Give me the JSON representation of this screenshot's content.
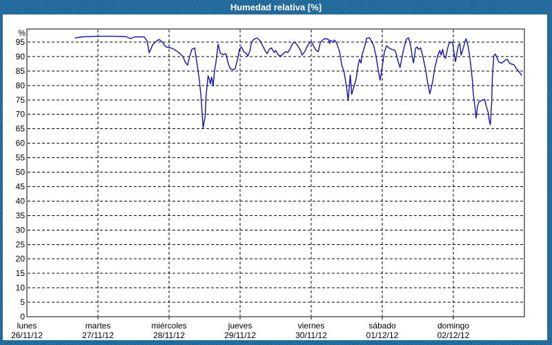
{
  "window": {
    "title": "Humedad relativa [%]"
  },
  "colors": {
    "frame": "#1e699c",
    "title_text": "#ffffff",
    "plot_background": "#ffffff",
    "grid": "#000000",
    "line": "#0e0ecc"
  },
  "chart_data": {
    "type": "line",
    "title": "Humedad relativa [%]",
    "ylabel": "%",
    "xlabel": "",
    "ylim": [
      0,
      99.5
    ],
    "y_ticks": [
      0,
      5,
      10,
      15,
      20,
      25,
      30,
      35,
      40,
      45,
      50,
      55,
      60,
      65,
      70,
      75,
      80,
      85,
      90,
      95
    ],
    "unit_label": "%",
    "grid": "dashed horizontal and vertical",
    "legend_position": "none",
    "x_range_days": 7,
    "x_days": [
      {
        "name": "lunes",
        "date": "26/11/12"
      },
      {
        "name": "martes",
        "date": "27/11/12"
      },
      {
        "name": "miércoles",
        "date": "28/11/12"
      },
      {
        "name": "jueves",
        "date": "29/11/12"
      },
      {
        "name": "viernes",
        "date": "30/11/12"
      },
      {
        "name": "sábado",
        "date": "01/12/12"
      },
      {
        "name": "domingo",
        "date": "02/12/12"
      }
    ],
    "series": [
      {
        "name": "Humedad relativa",
        "unit": "%",
        "color": "#0e0ecc",
        "points": [
          [
            0.68,
            96.4
          ],
          [
            0.77,
            96.8
          ],
          [
            0.98,
            97.0
          ],
          [
            1.22,
            97.0
          ],
          [
            1.39,
            96.9
          ],
          [
            1.46,
            96.2
          ],
          [
            1.52,
            96.8
          ],
          [
            1.65,
            96.8
          ],
          [
            1.69,
            95.5
          ],
          [
            1.72,
            91.3
          ],
          [
            1.77,
            94.1
          ],
          [
            1.82,
            95.3
          ],
          [
            1.86,
            95.9
          ],
          [
            1.91,
            94.9
          ],
          [
            1.95,
            93.4
          ],
          [
            2.05,
            92.8
          ],
          [
            2.13,
            91.5
          ],
          [
            2.19,
            90.2
          ],
          [
            2.23,
            88.0
          ],
          [
            2.26,
            87.0
          ],
          [
            2.29,
            90.0
          ],
          [
            2.32,
            92.5
          ],
          [
            2.36,
            93.0
          ],
          [
            2.39,
            88.1
          ],
          [
            2.41,
            84.9
          ],
          [
            2.43,
            81.0
          ],
          [
            2.45,
            76.0
          ],
          [
            2.48,
            65.3
          ],
          [
            2.51,
            69.8
          ],
          [
            2.52,
            76.2
          ],
          [
            2.54,
            81.0
          ],
          [
            2.55,
            83.3
          ],
          [
            2.57,
            82.0
          ],
          [
            2.58,
            80.5
          ],
          [
            2.6,
            82.9
          ],
          [
            2.62,
            79.8
          ],
          [
            2.64,
            85.0
          ],
          [
            2.66,
            88.1
          ],
          [
            2.69,
            94.3
          ],
          [
            2.72,
            91.2
          ],
          [
            2.76,
            90.6
          ],
          [
            2.8,
            91.0
          ],
          [
            2.83,
            87.8
          ],
          [
            2.86,
            85.8
          ],
          [
            2.9,
            85.4
          ],
          [
            2.93,
            85.8
          ],
          [
            2.96,
            88.6
          ],
          [
            2.99,
            92.5
          ],
          [
            3.02,
            93.3
          ],
          [
            3.05,
            91.7
          ],
          [
            3.09,
            91.0
          ],
          [
            3.11,
            90.2
          ],
          [
            3.14,
            92.1
          ],
          [
            3.16,
            95.0
          ],
          [
            3.2,
            96.1
          ],
          [
            3.24,
            96.4
          ],
          [
            3.28,
            95.5
          ],
          [
            3.31,
            94.1
          ],
          [
            3.35,
            92.1
          ],
          [
            3.38,
            91.0
          ],
          [
            3.41,
            92.5
          ],
          [
            3.44,
            93.0
          ],
          [
            3.48,
            91.4
          ],
          [
            3.5,
            92.1
          ],
          [
            3.54,
            90.5
          ],
          [
            3.57,
            90.2
          ],
          [
            3.61,
            91.0
          ],
          [
            3.64,
            91.7
          ],
          [
            3.67,
            91.4
          ],
          [
            3.7,
            92.5
          ],
          [
            3.74,
            94.5
          ],
          [
            3.77,
            95.0
          ],
          [
            3.8,
            94.1
          ],
          [
            3.85,
            92.1
          ],
          [
            3.87,
            90.5
          ],
          [
            3.91,
            91.7
          ],
          [
            3.94,
            93.3
          ],
          [
            3.97,
            94.5
          ],
          [
            4.0,
            95.2
          ],
          [
            4.04,
            93.3
          ],
          [
            4.07,
            92.1
          ],
          [
            4.1,
            91.7
          ],
          [
            4.13,
            95.0
          ],
          [
            4.17,
            95.8
          ],
          [
            4.19,
            96.2
          ],
          [
            4.24,
            96.0
          ],
          [
            4.26,
            94.5
          ],
          [
            4.27,
            95.7
          ],
          [
            4.3,
            95.0
          ],
          [
            4.33,
            95.7
          ],
          [
            4.36,
            94.5
          ],
          [
            4.4,
            91.7
          ],
          [
            4.43,
            87.0
          ],
          [
            4.46,
            85.0
          ],
          [
            4.48,
            82.2
          ],
          [
            4.5,
            79.0
          ],
          [
            4.52,
            74.8
          ],
          [
            4.55,
            83.7
          ],
          [
            4.57,
            76.9
          ],
          [
            4.6,
            79.5
          ],
          [
            4.63,
            82.0
          ],
          [
            4.66,
            86.9
          ],
          [
            4.68,
            89.0
          ],
          [
            4.7,
            87.8
          ],
          [
            4.72,
            91.0
          ],
          [
            4.75,
            93.3
          ],
          [
            4.78,
            96.3
          ],
          [
            4.82,
            96.5
          ],
          [
            4.85,
            95.3
          ],
          [
            4.88,
            93.7
          ],
          [
            4.91,
            90.5
          ],
          [
            4.94,
            85.8
          ],
          [
            4.97,
            81.8
          ],
          [
            5.0,
            86.5
          ],
          [
            5.03,
            91.5
          ],
          [
            5.06,
            93.7
          ],
          [
            5.1,
            92.9
          ],
          [
            5.13,
            92.5
          ],
          [
            5.17,
            92.3
          ],
          [
            5.19,
            91.5
          ],
          [
            5.22,
            88.5
          ],
          [
            5.25,
            86.2
          ],
          [
            5.28,
            90.0
          ],
          [
            5.31,
            93.5
          ],
          [
            5.34,
            96.0
          ],
          [
            5.37,
            96.5
          ],
          [
            5.4,
            93.7
          ],
          [
            5.42,
            90.2
          ],
          [
            5.44,
            87.8
          ],
          [
            5.47,
            92.9
          ],
          [
            5.49,
            93.3
          ],
          [
            5.51,
            92.5
          ],
          [
            5.54,
            93.0
          ],
          [
            5.57,
            90.2
          ],
          [
            5.61,
            85.5
          ],
          [
            5.64,
            80.7
          ],
          [
            5.67,
            77.1
          ],
          [
            5.71,
            81.4
          ],
          [
            5.74,
            86.2
          ],
          [
            5.78,
            90.2
          ],
          [
            5.81,
            92.1
          ],
          [
            5.83,
            90.5
          ],
          [
            5.85,
            92.5
          ],
          [
            5.87,
            90.2
          ],
          [
            5.89,
            89.4
          ],
          [
            5.92,
            92.9
          ],
          [
            5.94,
            94.5
          ],
          [
            5.97,
            95.0
          ],
          [
            5.99,
            94.8
          ],
          [
            6.01,
            91.4
          ],
          [
            6.03,
            88.2
          ],
          [
            6.05,
            91.0
          ],
          [
            6.07,
            93.7
          ],
          [
            6.09,
            94.5
          ],
          [
            6.11,
            90.5
          ],
          [
            6.14,
            92.9
          ],
          [
            6.17,
            95.7
          ],
          [
            6.18,
            96.1
          ],
          [
            6.21,
            93.3
          ],
          [
            6.23,
            90.2
          ],
          [
            6.25,
            85.8
          ],
          [
            6.27,
            81.4
          ],
          [
            6.28,
            77.4
          ],
          [
            6.3,
            73.5
          ],
          [
            6.32,
            68.7
          ],
          [
            6.34,
            72.7
          ],
          [
            6.36,
            74.3
          ],
          [
            6.39,
            74.7
          ],
          [
            6.42,
            75.1
          ],
          [
            6.44,
            75.2
          ],
          [
            6.46,
            73.1
          ],
          [
            6.49,
            70.7
          ],
          [
            6.5,
            68.7
          ],
          [
            6.52,
            66.4
          ],
          [
            6.54,
            74.3
          ],
          [
            6.55,
            83.0
          ],
          [
            6.57,
            90.2
          ],
          [
            6.59,
            90.9
          ],
          [
            6.64,
            88.1
          ],
          [
            6.68,
            87.7
          ],
          [
            6.74,
            88.9
          ],
          [
            6.76,
            89.0
          ],
          [
            6.79,
            87.7
          ],
          [
            6.83,
            87.3
          ],
          [
            6.85,
            87.3
          ],
          [
            6.88,
            86.1
          ],
          [
            6.92,
            84.9
          ],
          [
            6.96,
            83.5
          ]
        ]
      }
    ]
  }
}
